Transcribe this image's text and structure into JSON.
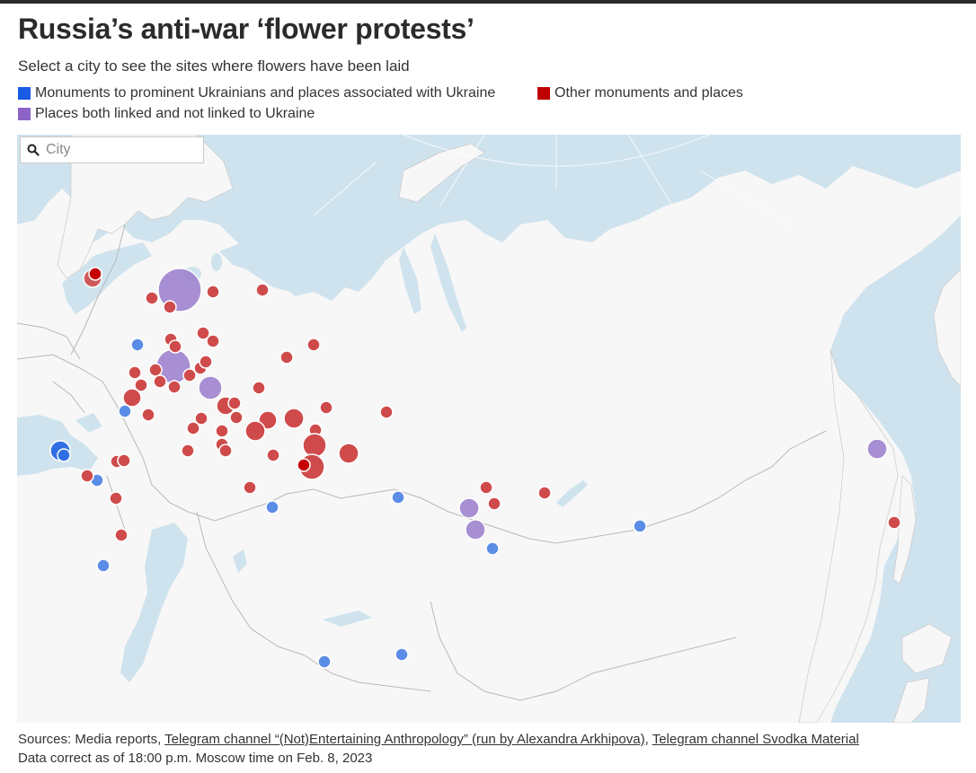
{
  "title": "Russia’s anti-war ‘flower protests’",
  "subtitle": "Select a city to see the sites where flowers have been laid",
  "legend": [
    {
      "label": "Monuments to prominent Ukrainians and places associated with Ukraine",
      "color": "#2563eb"
    },
    {
      "label": "Other monuments and places",
      "color": "#c00000"
    },
    {
      "label": "Places both linked and not linked to Ukraine",
      "color": "#8e63c7"
    }
  ],
  "search": {
    "placeholder": "City",
    "value": ""
  },
  "sources": {
    "prefix": "Sources: Media reports, ",
    "link1": "Telegram channel “(Not)Entertaining Anthropology” (run by Alexandra Arkhipova)",
    "separator": ", ",
    "link2": "Telegram channel Svodka Material"
  },
  "data_note": "Data correct as of 18:00 p.m. Moscow time on Feb. 8, 2023",
  "map_colors": {
    "water": "#cfe3ee",
    "land": "#f7f7f7",
    "border": "#b9b9b9"
  }
}
